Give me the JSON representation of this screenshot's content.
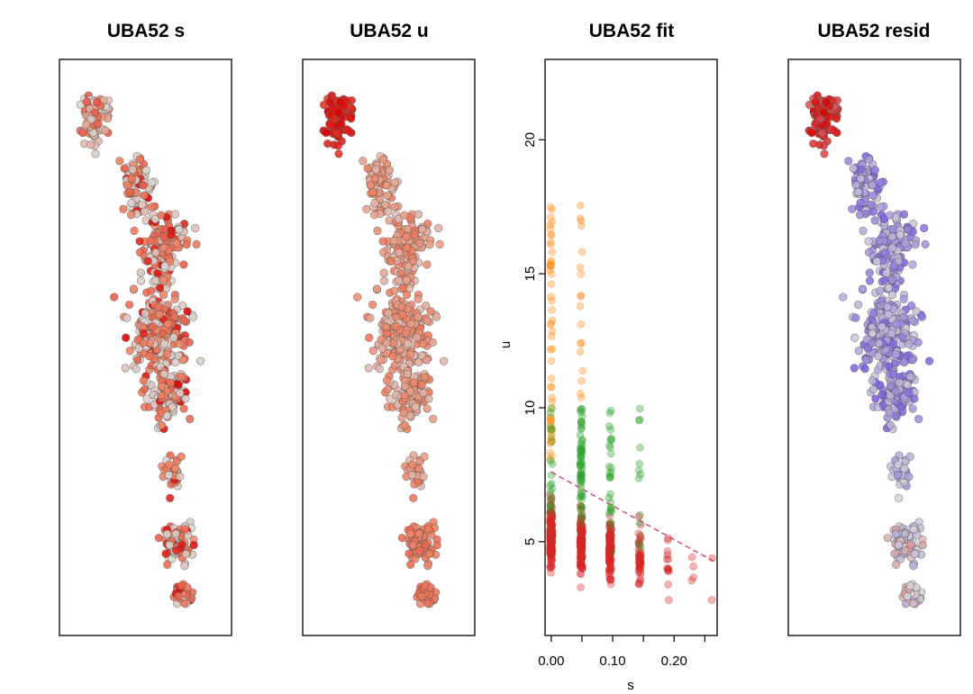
{
  "chart_data": [
    {
      "type": "scatter",
      "title": "UBA52 s",
      "embedding": true,
      "color_scale": [
        "#d9d9d9",
        "#f08060",
        "#dd0000"
      ]
    },
    {
      "type": "scatter",
      "title": "UBA52 u",
      "embedding": true,
      "color_scale": [
        "#d9d9d9",
        "#f08060",
        "#dd0000"
      ]
    },
    {
      "type": "scatter",
      "title": "UBA52 fit",
      "xlabel": "s",
      "ylabel": "u",
      "xlim": [
        -0.01,
        0.27
      ],
      "ylim": [
        1.5,
        23.0
      ],
      "xticks": [
        "0.00",
        "0.10",
        "0.20"
      ],
      "xtick_values": [
        0.0,
        0.1,
        0.2
      ],
      "yticks": [
        "5",
        "10",
        "15",
        "20"
      ],
      "ytick_values": [
        5,
        10,
        15,
        20
      ],
      "s_levels": [
        0.0,
        0.049,
        0.096,
        0.144,
        0.19,
        0.23,
        0.26
      ],
      "point_colors": [
        "#d62728",
        "#2ca02c",
        "#ff8c1a"
      ],
      "fit_line": {
        "x": [
          0.0,
          0.27
        ],
        "y": [
          7.6,
          4.2
        ],
        "color": "#d0507a",
        "style": "dashed"
      }
    },
    {
      "type": "scatter",
      "title": "UBA52 resid",
      "embedding": true,
      "color_scale": [
        "#7b5ce0",
        "#d9d9d9",
        "#dd0000"
      ]
    }
  ]
}
